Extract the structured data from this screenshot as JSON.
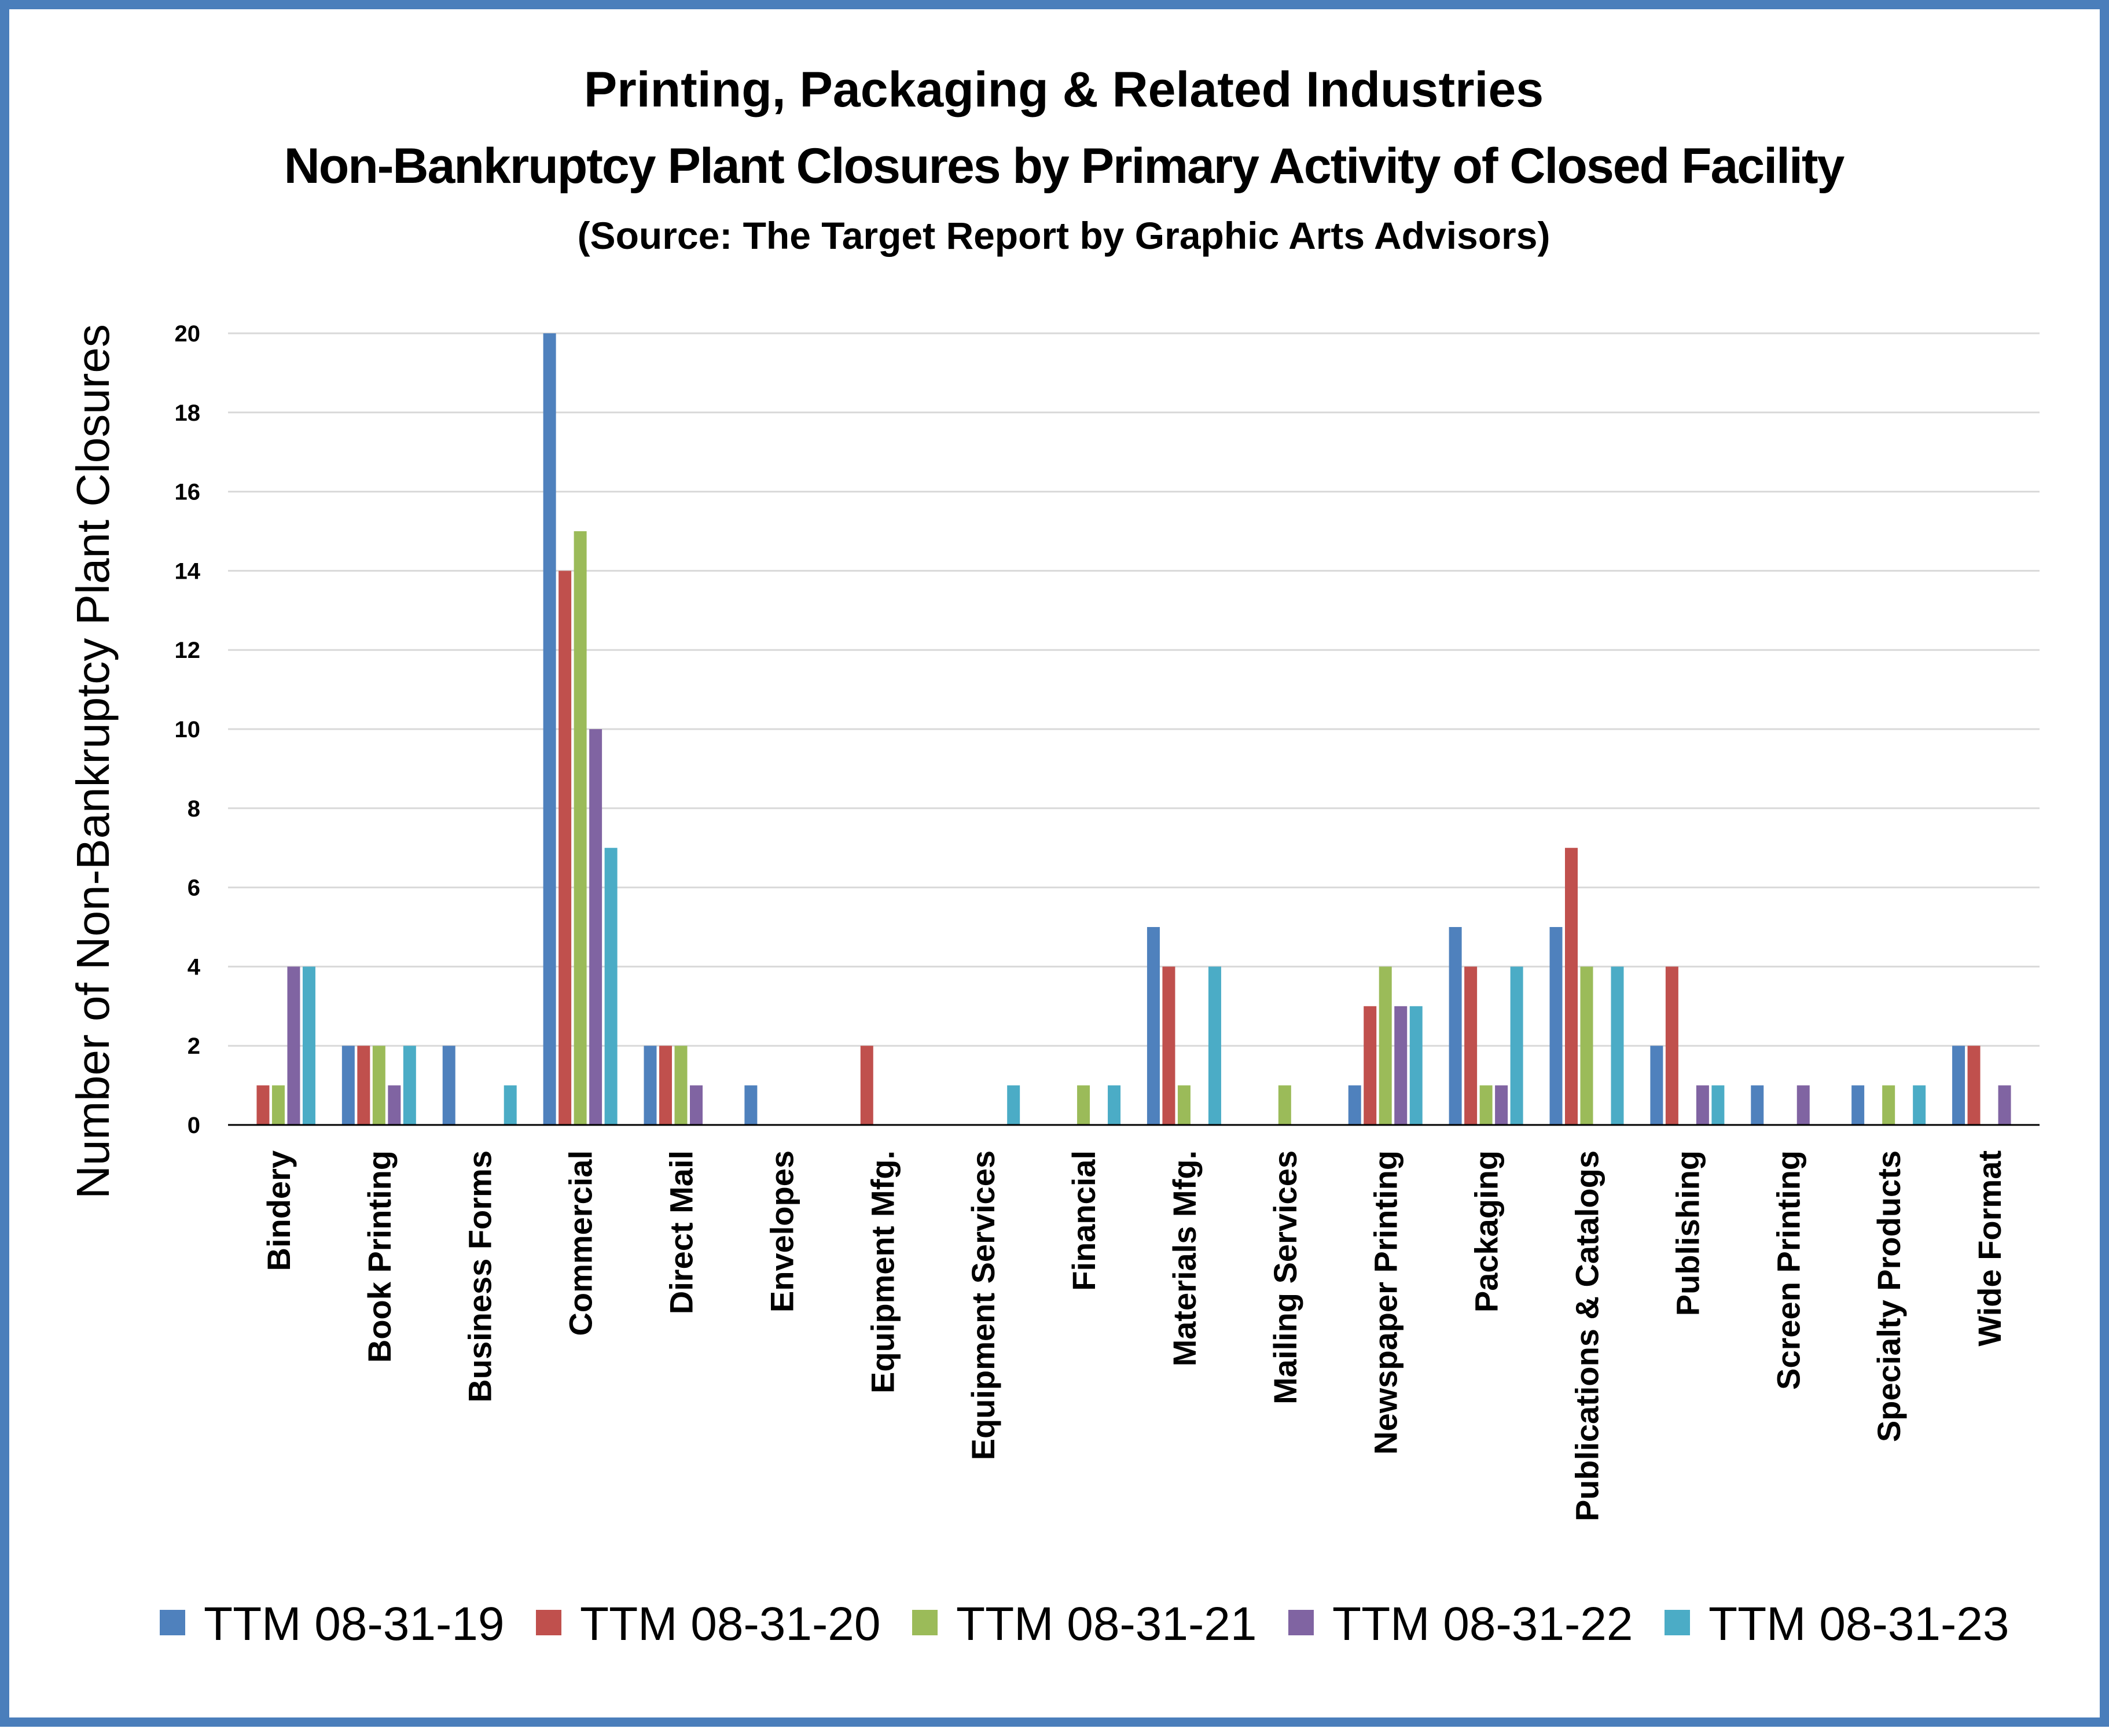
{
  "chart_data": {
    "type": "bar",
    "title": "Printing, Packaging & Related Industries",
    "subtitle": "Non-Bankruptcy Plant Closures by Primary Activity of Closed Facility",
    "source_note": "(Source: The Target Report by Graphic Arts Advisors)",
    "xlabel": "",
    "ylabel": "Number of Non-Bankruptcy Plant Closures",
    "ylim": [
      0,
      20
    ],
    "yticks": [
      "0",
      "2",
      "4",
      "6",
      "8",
      "10",
      "12",
      "14",
      "16",
      "18",
      "20"
    ],
    "grid": true,
    "legend_position": "bottom",
    "categories": [
      "Bindery",
      "Book Printing",
      "Business Forms",
      "Commercial",
      "Direct Mail",
      "Envelopes",
      "Equipment Mfg.",
      "Equipment Services",
      "Financial",
      "Materials Mfg.",
      "Mailing Services",
      "Newspaper Printing",
      "Packaging",
      "Publications & Catalogs",
      "Publishing",
      "Screen Printing",
      "Specialty Products",
      "Wide Format"
    ],
    "series": [
      {
        "name": "TTM 08-31-19",
        "color": "#4f81bd",
        "values": [
          0,
          2,
          2,
          20,
          2,
          1,
          0,
          0,
          0,
          5,
          0,
          1,
          5,
          5,
          2,
          1,
          1,
          2
        ]
      },
      {
        "name": "TTM 08-31-20",
        "color": "#c0504d",
        "values": [
          1,
          2,
          0,
          14,
          2,
          0,
          2,
          0,
          0,
          4,
          0,
          3,
          4,
          7,
          4,
          0,
          0,
          2
        ]
      },
      {
        "name": "TTM 08-31-21",
        "color": "#9bbb59",
        "values": [
          1,
          2,
          0,
          15,
          2,
          0,
          0,
          0,
          1,
          1,
          1,
          4,
          1,
          4,
          0,
          0,
          1,
          0
        ]
      },
      {
        "name": "TTM 08-31-22",
        "color": "#8064a2",
        "values": [
          4,
          1,
          0,
          10,
          1,
          0,
          0,
          0,
          0,
          0,
          0,
          3,
          1,
          0,
          1,
          1,
          0,
          1
        ]
      },
      {
        "name": "TTM 08-31-23",
        "color": "#4bacc6",
        "values": [
          4,
          2,
          1,
          7,
          0,
          0,
          0,
          1,
          1,
          4,
          0,
          3,
          4,
          4,
          1,
          0,
          1,
          0
        ]
      }
    ]
  }
}
